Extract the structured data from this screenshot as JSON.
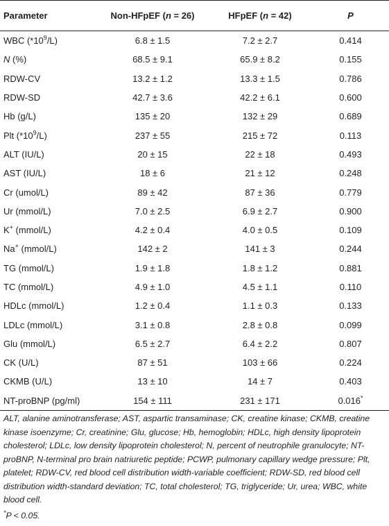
{
  "table": {
    "headers": {
      "parameter": "Parameter",
      "non_hfpef": "Non-HFpEF",
      "non_hfpef_n": "(n = 26)",
      "hfpef": "HFpEF",
      "hfpef_n": "(n = 42)",
      "p": "P"
    },
    "rows": [
      {
        "parameter": "WBC (*10",
        "sup": "9",
        "suffix": "/L)",
        "non_hfpef": "6.8 ± 1.5",
        "hfpef": "7.2 ± 2.7",
        "p": "0.414"
      },
      {
        "parameter": "N",
        "suffix": " (%)",
        "italic": true,
        "non_hfpef": "68.5 ± 9.1",
        "hfpef": "65.9 ± 8.2",
        "p": "0.155"
      },
      {
        "parameter": "RDW-CV",
        "non_hfpef": "13.2 ± 1.2",
        "hfpef": "13.3 ± 1.5",
        "p": "0.786"
      },
      {
        "parameter": "RDW-SD",
        "non_hfpef": "42.7 ± 3.6",
        "hfpef": "42.2 ± 6.1",
        "p": "0.600"
      },
      {
        "parameter": "Hb (g/L)",
        "non_hfpef": "135 ± 20",
        "hfpef": "132 ± 29",
        "p": "0.689"
      },
      {
        "parameter": "Plt (*10",
        "sup": "9",
        "suffix": "/L)",
        "non_hfpef": "237 ± 55",
        "hfpef": "215 ± 72",
        "p": "0.113"
      },
      {
        "parameter": "ALT (IU/L)",
        "non_hfpef": "20 ± 15",
        "hfpef": "22 ± 18",
        "p": "0.493"
      },
      {
        "parameter": "AST (IU/L)",
        "non_hfpef": "18 ± 6",
        "hfpef": "21 ± 12",
        "p": "0.248"
      },
      {
        "parameter": "Cr (umol/L)",
        "non_hfpef": "89 ± 42",
        "hfpef": "87 ± 36",
        "p": "0.779"
      },
      {
        "parameter": "Ur (mmol/L)",
        "non_hfpef": "7.0 ± 2.5",
        "hfpef": "6.9 ± 2.7",
        "p": "0.900"
      },
      {
        "parameter": "K",
        "sup": "+",
        "suffix": " (mmol/L)",
        "non_hfpef": "4.2 ± 0.4",
        "hfpef": "4.0 ± 0.5",
        "p": "0.109"
      },
      {
        "parameter": "Na",
        "sup": "+",
        "suffix": " (mmol/L)",
        "non_hfpef": "142 ± 2",
        "hfpef": "141 ± 3",
        "p": "0.244"
      },
      {
        "parameter": "TG (mmol/L)",
        "non_hfpef": "1.9 ± 1.8",
        "hfpef": "1.8 ± 1.2",
        "p": "0.881"
      },
      {
        "parameter": "TC (mmol/L)",
        "non_hfpef": "4.9 ± 1.0",
        "hfpef": "4.5 ± 1.1",
        "p": "0.110"
      },
      {
        "parameter": "HDLc (mmol/L)",
        "non_hfpef": "1.2 ± 0.4",
        "hfpef": "1.1 ± 0.3",
        "p": "0.133"
      },
      {
        "parameter": "LDLc (mmol/L)",
        "non_hfpef": "3.1 ± 0.8",
        "hfpef": "2.8 ± 0.8",
        "p": "0.099"
      },
      {
        "parameter": "Glu (mmol/L)",
        "non_hfpef": "6.5 ± 2.7",
        "hfpef": "6.4 ± 2.2",
        "p": "0.807"
      },
      {
        "parameter": "CK (U/L)",
        "non_hfpef": "87 ± 51",
        "hfpef": "103 ± 66",
        "p": "0.224"
      },
      {
        "parameter": "CKMB (U/L)",
        "non_hfpef": "13 ± 10",
        "hfpef": "14 ± 7",
        "p": "0.403"
      },
      {
        "parameter": "NT-proBNP (pg/ml)",
        "non_hfpef": "154 ± 111",
        "hfpef": "231 ± 171",
        "p": "0.016",
        "p_sup": "*"
      }
    ]
  },
  "footnote": {
    "abbreviations": "ALT, alanine aminotransferase; AST, aspartic transaminase; CK, creatine kinase; CKMB, creatine kinase isoenzyme; Cr, creatinine; Glu, glucose; Hb, hemoglobin; HDLc, high density lipoprotein cholesterol; LDLc, low density lipoprotein cholesterol; N, percent of neutrophile granulocyte; NT-proBNP, N-terminal pro brain natriuretic peptide; PCWP, pulmonary capillary wedge pressure; Plt, platelet; RDW-CV, red blood cell distribution width-variable coefficient; RDW-SD, red blood cell distribution width-standard deviation; TC, total cholesterol; TG, triglyceride; Ur, urea; WBC, white blood cell.",
    "significance_marker": "*",
    "significance_text": "P < 0.05."
  }
}
